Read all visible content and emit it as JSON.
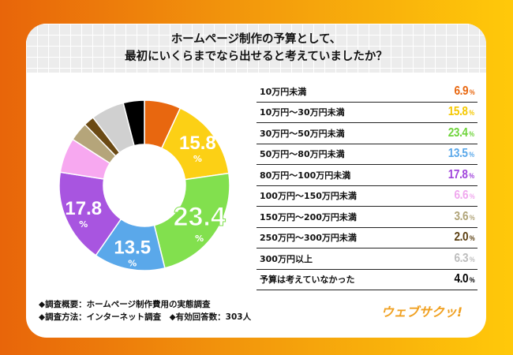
{
  "title": [
    "ホームページ制作の予算として、",
    "最初にいくらまでなら出せると考えていましたか？"
  ],
  "chart_data": {
    "type": "pie",
    "donut": true,
    "unit": "%",
    "categories": [
      "10万円未満",
      "10万円〜30万円未満",
      "30万円〜50万円未満",
      "50万円〜80万円未満",
      "80万円〜100万円未満",
      "100万円〜150万円未満",
      "150万円〜200万円未満",
      "250万円〜300万円未満",
      "300万円以上",
      "予算は考えていなかった"
    ],
    "values": [
      6.9,
      15.8,
      23.4,
      13.5,
      17.8,
      6.6,
      3.6,
      2.0,
      6.3,
      4.0
    ],
    "colors": [
      "#e8670f",
      "#fcd015",
      "#82e04e",
      "#5aa8ea",
      "#a855e0",
      "#f7a8f0",
      "#b5a57a",
      "#6b4a14",
      "#d0d0d0",
      "#000000"
    ],
    "text_colors": [
      "#e8670f",
      "#f5c800",
      "#6fd43c",
      "#5aa8ea",
      "#a044dc",
      "#f0a8ee",
      "#b0a478",
      "#5a3e10",
      "#bdbdbd",
      "#000000"
    ]
  },
  "footer": {
    "line1": "◆調査概要：ホームページ制作費用の実態調査",
    "line2": "◆調査方法：インターネット調査　◆有効回答数：303人"
  },
  "logo": "ウェブサクッ!"
}
